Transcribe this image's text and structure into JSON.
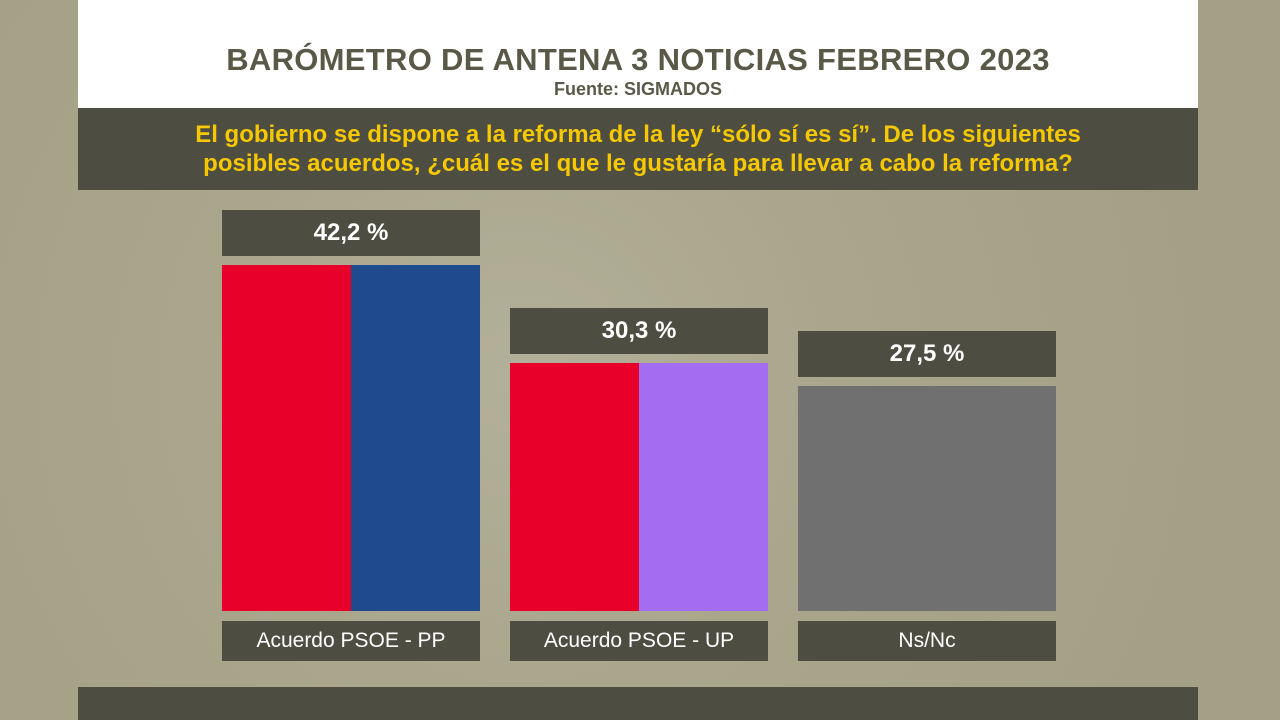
{
  "header": {
    "title": "BARÓMETRO DE ANTENA 3 NOTICIAS FEBRERO 2023",
    "source": "Fuente: SIGMADOS"
  },
  "question": {
    "line1": "El gobierno se dispone a la reforma de la ley “sólo sí es sí”. De los siguientes",
    "line2": "posibles acuerdos, ¿cuál es el que le gustaría para llevar a cabo la reforma?"
  },
  "chart_data": {
    "type": "bar",
    "title": "BARÓMETRO DE ANTENA 3 NOTICIAS FEBRERO 2023",
    "categories": [
      "Acuerdo PSOE - PP",
      "Acuerdo PSOE - UP",
      "Ns/Nc"
    ],
    "values": [
      42.2,
      30.3,
      27.5
    ],
    "value_labels": [
      "42,2 %",
      "30,3 %",
      "27,5 %"
    ],
    "bar_colors": [
      [
        "#e8002a",
        "#1f4a8e"
      ],
      [
        "#e8002a",
        "#a46cf0"
      ],
      [
        "#707070"
      ]
    ],
    "xlabel": "",
    "ylabel": "",
    "ylim": [
      0,
      42.2
    ],
    "grid": false
  }
}
